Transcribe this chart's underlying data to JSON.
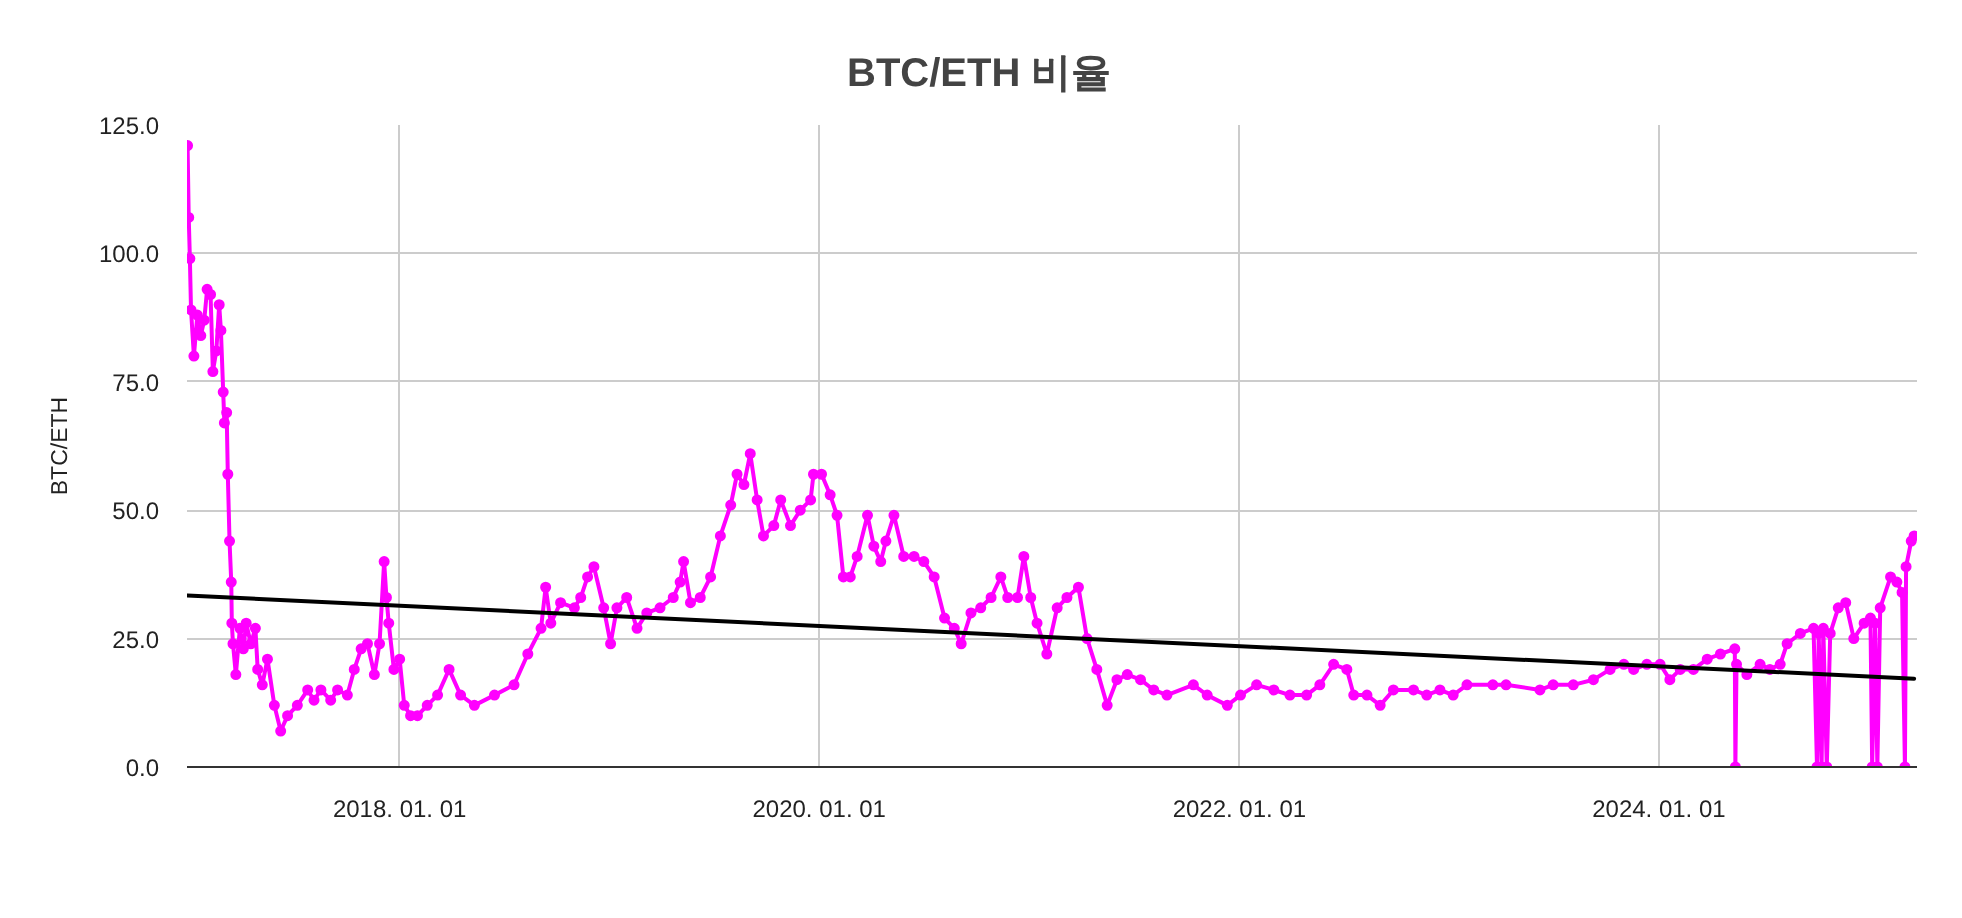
{
  "chart_data": {
    "type": "line",
    "title": "BTC/ETH 비율",
    "ylabel": "BTC/ETH",
    "xlim": [
      "2016-12-27",
      "2025-03-25"
    ],
    "xticks": [
      {
        "value": "2018-01-01",
        "label": "2018. 01. 01"
      },
      {
        "value": "2020-01-01",
        "label": "2020. 01. 01"
      },
      {
        "value": "2022-01-01",
        "label": "2022. 01. 01"
      },
      {
        "value": "2024-01-01",
        "label": "2024. 01. 01"
      }
    ],
    "ylim": [
      0,
      125
    ],
    "yticks": [
      {
        "value": 0,
        "label": "0.0"
      },
      {
        "value": 25,
        "label": "25.0"
      },
      {
        "value": 50,
        "label": "50.0"
      },
      {
        "value": 75,
        "label": "75.0"
      },
      {
        "value": 100,
        "label": "100.0"
      },
      {
        "value": 125,
        "label": "125.0"
      }
    ],
    "grid": true,
    "series": [
      {
        "color": "#ff00ff",
        "marker": "circle",
        "x": [
          "2016-12-28",
          "2016-12-30",
          "2017-01-01",
          "2017-01-03",
          "2017-01-08",
          "2017-01-14",
          "2017-01-20",
          "2017-01-26",
          "2017-01-31",
          "2017-02-06",
          "2017-02-10",
          "2017-02-16",
          "2017-02-21",
          "2017-02-24",
          "2017-02-28",
          "2017-03-02",
          "2017-03-06",
          "2017-03-08",
          "2017-03-11",
          "2017-03-14",
          "2017-03-15",
          "2017-03-17",
          "2017-03-22",
          "2017-03-29",
          "2017-04-04",
          "2017-04-09",
          "2017-04-17",
          "2017-04-25",
          "2017-04-29",
          "2017-05-07",
          "2017-05-16",
          "2017-05-28",
          "2017-06-08",
          "2017-06-20",
          "2017-07-07",
          "2017-07-25",
          "2017-08-05",
          "2017-08-17",
          "2017-09-03",
          "2017-09-15",
          "2017-10-02",
          "2017-10-14",
          "2017-10-26",
          "2017-11-06",
          "2017-11-18",
          "2017-11-27",
          "2017-12-05",
          "2017-12-09",
          "2017-12-13",
          "2017-12-22",
          "2018-01-01",
          "2018-01-09",
          "2018-01-20",
          "2018-02-01",
          "2018-02-18",
          "2018-03-08",
          "2018-03-28",
          "2018-04-17",
          "2018-05-11",
          "2018-06-15",
          "2018-07-19",
          "2018-08-12",
          "2018-09-04",
          "2018-09-12",
          "2018-09-21",
          "2018-10-08",
          "2018-11-01",
          "2018-11-12",
          "2018-11-24",
          "2018-12-05",
          "2018-12-22",
          "2019-01-03",
          "2019-01-14",
          "2019-01-31",
          "2019-02-18",
          "2019-03-07",
          "2019-03-30",
          "2019-04-22",
          "2019-05-04",
          "2019-05-10",
          "2019-05-22",
          "2019-06-08",
          "2019-06-26",
          "2019-07-13",
          "2019-07-31",
          "2019-08-11",
          "2019-08-23",
          "2019-09-03",
          "2019-09-15",
          "2019-09-26",
          "2019-10-14",
          "2019-10-26",
          "2019-11-12",
          "2019-11-29",
          "2019-12-17",
          "2019-12-22",
          "2020-01-05",
          "2020-01-20",
          "2020-02-01",
          "2020-02-12",
          "2020-02-24",
          "2020-03-07",
          "2020-03-25",
          "2020-04-05",
          "2020-04-17",
          "2020-04-26",
          "2020-05-10",
          "2020-05-27",
          "2020-06-14",
          "2020-07-01",
          "2020-07-19",
          "2020-08-06",
          "2020-08-23",
          "2020-09-04",
          "2020-09-21",
          "2020-10-08",
          "2020-10-26",
          "2020-11-12",
          "2020-11-24",
          "2020-12-11",
          "2020-12-22",
          "2021-01-03",
          "2021-01-14",
          "2021-01-31",
          "2021-02-18",
          "2021-03-07",
          "2021-03-27",
          "2021-04-11",
          "2021-04-28",
          "2021-05-16",
          "2021-06-02",
          "2021-06-20",
          "2021-07-13",
          "2021-08-05",
          "2021-08-28",
          "2021-10-13",
          "2021-11-06",
          "2021-12-11",
          "2022-01-03",
          "2022-01-31",
          "2022-03-02",
          "2022-03-30",
          "2022-04-28",
          "2022-05-21",
          "2022-06-14",
          "2022-07-07",
          "2022-07-19",
          "2022-08-11",
          "2022-09-03",
          "2022-09-26",
          "2022-10-31",
          "2022-11-23",
          "2022-12-16",
          "2023-01-08",
          "2023-02-01",
          "2023-03-18",
          "2023-04-10",
          "2023-06-08",
          "2023-07-01",
          "2023-08-05",
          "2023-09-09",
          "2023-10-08",
          "2023-11-01",
          "2023-11-18",
          "2023-12-11",
          "2024-01-03",
          "2024-01-20",
          "2024-02-07",
          "2024-03-01",
          "2024-03-25",
          "2024-04-17",
          "2024-05-12",
          "2024-05-13",
          "2024-05-15",
          "2024-06-02",
          "2024-06-25",
          "2024-07-12",
          "2024-07-30",
          "2024-08-11",
          "2024-09-03",
          "2024-09-26",
          "2024-10-02",
          "2024-10-05",
          "2024-10-10",
          "2024-10-13",
          "2024-10-19",
          "2024-10-25",
          "2024-11-08",
          "2024-11-21",
          "2024-12-05",
          "2024-12-23",
          "2025-01-03",
          "2025-01-06",
          "2025-01-11",
          "2025-01-15",
          "2025-01-20",
          "2025-02-07",
          "2025-02-18",
          "2025-02-27",
          "2025-03-04",
          "2025-03-06",
          "2025-03-15",
          "2025-03-20"
        ],
        "values": [
          121,
          107,
          99,
          89,
          80,
          88,
          84,
          87,
          93,
          92,
          77,
          81,
          90,
          85,
          73,
          67,
          69,
          57,
          44,
          36,
          28,
          24,
          18,
          27,
          23,
          28,
          24,
          27,
          19,
          16,
          21,
          12,
          7,
          10,
          12,
          15,
          13,
          15,
          13,
          15,
          14,
          19,
          23,
          24,
          18,
          24,
          40,
          33,
          28,
          19,
          21,
          12,
          10,
          10,
          12,
          14,
          19,
          14,
          12,
          14,
          16,
          22,
          27,
          35,
          28,
          32,
          31,
          33,
          37,
          39,
          31,
          24,
          31,
          33,
          27,
          30,
          31,
          33,
          36,
          40,
          32,
          33,
          37,
          45,
          51,
          57,
          55,
          61,
          52,
          45,
          47,
          52,
          47,
          50,
          52,
          57,
          57,
          53,
          49,
          37,
          37,
          41,
          49,
          43,
          40,
          44,
          49,
          41,
          41,
          40,
          37,
          29,
          27,
          24,
          30,
          31,
          33,
          37,
          33,
          33,
          41,
          33,
          28,
          22,
          31,
          33,
          35,
          25,
          19,
          12,
          17,
          18,
          17,
          15,
          14,
          16,
          14,
          12,
          14,
          16,
          15,
          14,
          14,
          16,
          20,
          19,
          14,
          14,
          12,
          15,
          15,
          14,
          15,
          14,
          16,
          16,
          16,
          15,
          16,
          16,
          17,
          19,
          20,
          19,
          20,
          20,
          17,
          19,
          19,
          21,
          22,
          23,
          0,
          20,
          18,
          20,
          19,
          20,
          24,
          26,
          27,
          0,
          26,
          0,
          27,
          0,
          26,
          31,
          32,
          25,
          28,
          29,
          0,
          28,
          0,
          31,
          37,
          36,
          34,
          0,
          39,
          44,
          45
        ]
      },
      {
        "color": "#000000",
        "x": [
          "2016-12-28",
          "2025-03-20"
        ],
        "values": [
          33.4,
          17.2
        ]
      }
    ]
  }
}
